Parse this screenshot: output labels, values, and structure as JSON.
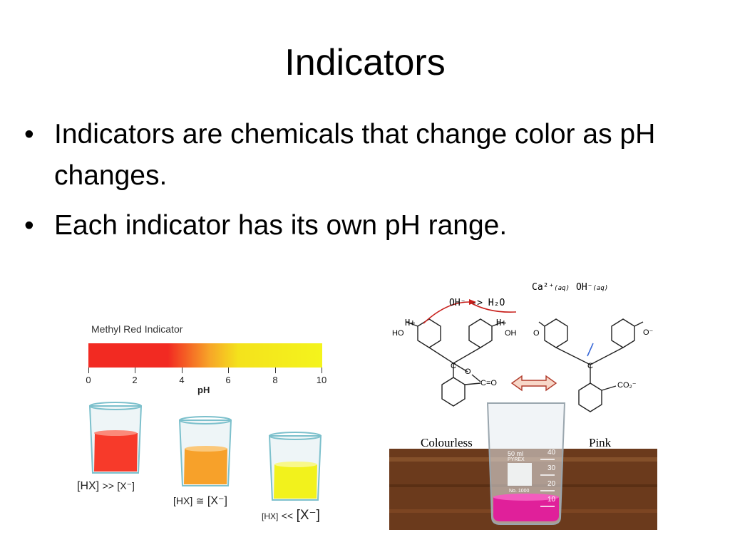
{
  "slide": {
    "title": "Indicators",
    "bullets": [
      "Indicators are chemicals that change color as pH changes.",
      "Each indicator has its own pH range."
    ],
    "bullet_glyph": "•"
  },
  "methyl_red": {
    "title": "Methyl Red Indicator",
    "ticks": [
      "0",
      "2",
      "4",
      "6",
      "8",
      "10"
    ],
    "axis_label": "pH",
    "beakers": [
      {
        "left": "[HX]",
        "op": ">>",
        "right": "[X⁻]",
        "color": "#f73a2a"
      },
      {
        "left": "[HX]",
        "op": "≅",
        "right": "[X⁻]",
        "color": "#f7a12a"
      },
      {
        "left": "[HX]",
        "op": "<<",
        "right": "[X⁻]",
        "color": "#f2f21c"
      }
    ]
  },
  "phenolphthalein": {
    "top_left": "Ca²⁺",
    "top_left_sub": "(aq)",
    "top_right": "OH⁻",
    "top_right_sub": "(aq)",
    "reaction": "OH⁻ -> H₂O",
    "h_left": "H+",
    "h_right": "H+",
    "ho_left": "HO",
    "oh_right": "OH",
    "c_label": "C",
    "o_label": "O",
    "co_label": "C=O",
    "o_right": "O",
    "o_minus": "O⁻",
    "c_right": "C",
    "co2_label": "CO₂⁻",
    "colourless": "Colourless",
    "pink": "Pink",
    "beaker_text": "50 ml",
    "beaker_brand": "PYREX",
    "beaker_marks": [
      "40",
      "30",
      "20",
      "10"
    ],
    "beaker_no": "No. 1000"
  },
  "colors": {
    "pink_solution": "#e0209a",
    "wood": "#6b3a1c",
    "arrow_red": "#c8201c"
  }
}
